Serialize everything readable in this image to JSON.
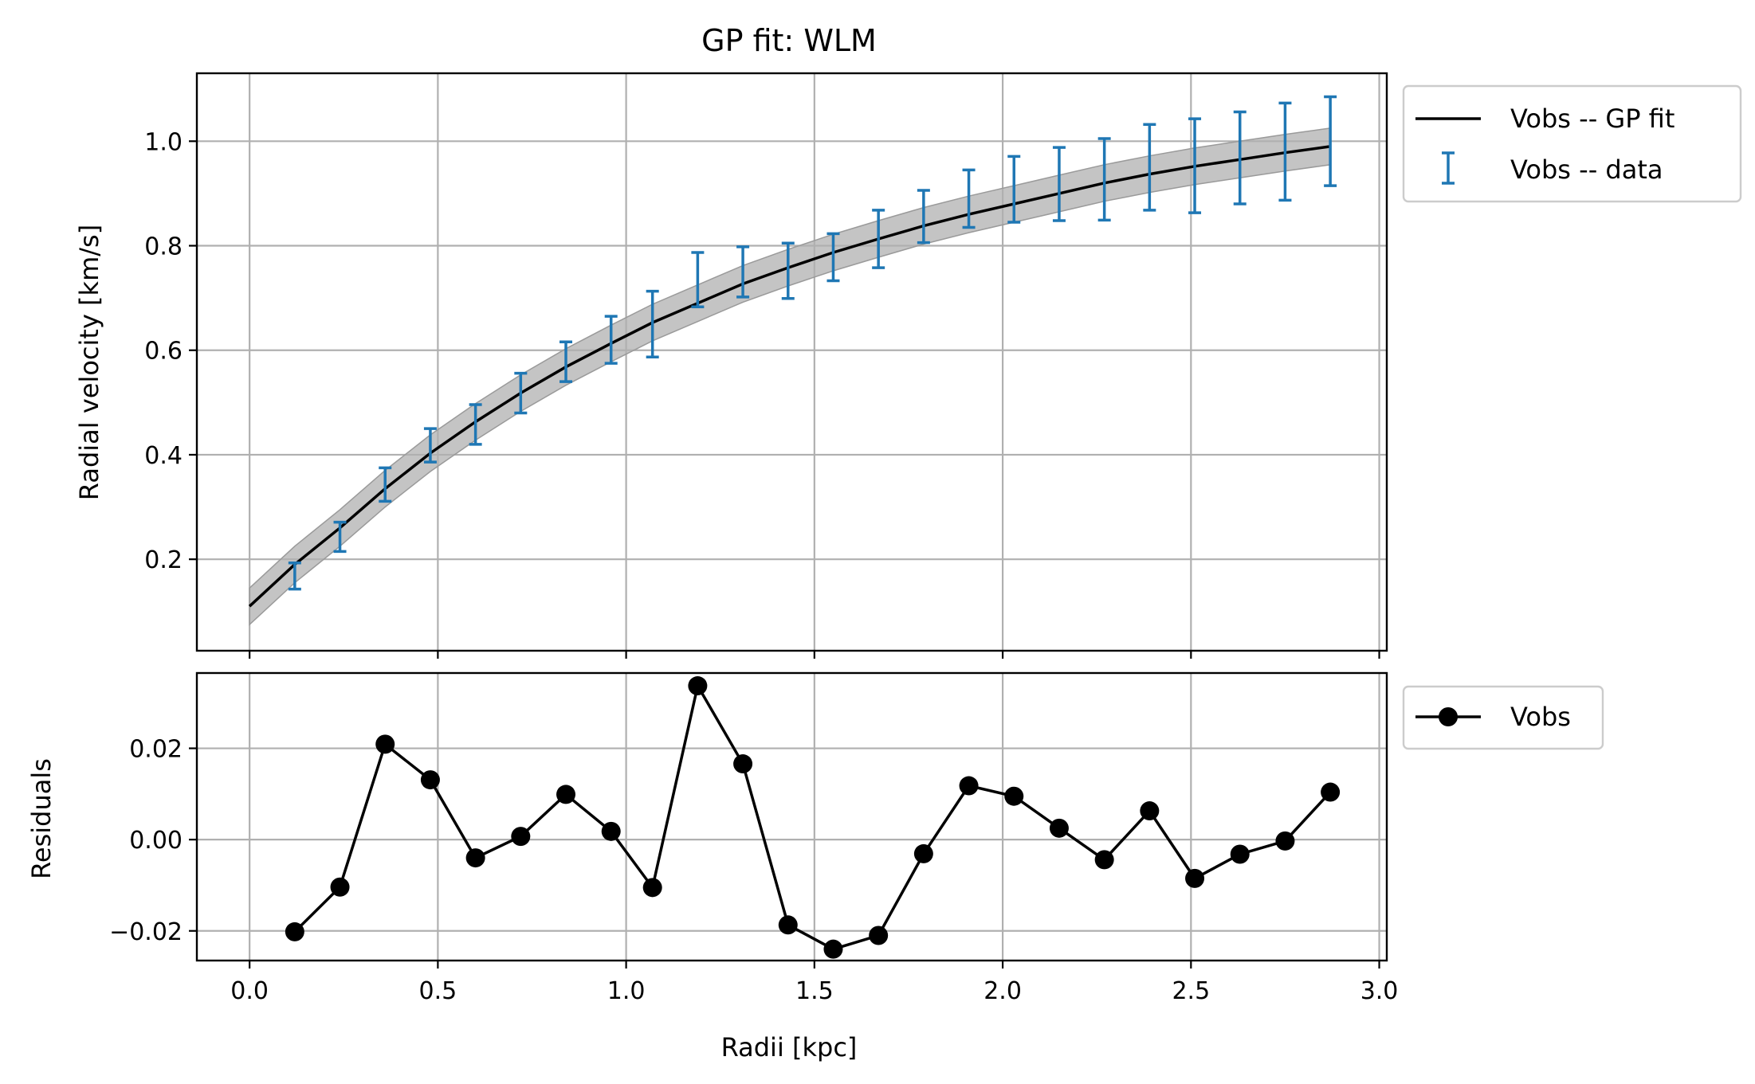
{
  "chart_data": [
    {
      "type": "line",
      "title": "GP fit: WLM",
      "xlabel": "",
      "ylabel": "Radial velocity [km/s]",
      "xlim": [
        -0.14,
        3.02
      ],
      "ylim": [
        0.025,
        1.13
      ],
      "xticks": [
        0.0,
        0.5,
        1.0,
        1.5,
        2.0,
        2.5,
        3.0
      ],
      "yticks": [
        0.2,
        0.4,
        0.6,
        0.8,
        1.0
      ],
      "ytick_labels": [
        "0.2",
        "0.4",
        "0.6",
        "0.8",
        "1.0"
      ],
      "grid": true,
      "legend_position": "outside-top-right",
      "series": [
        {
          "name": "Vobs -- GP fit",
          "kind": "line",
          "color": "#000000",
          "band_color": "#b0b0b0",
          "x": [
            0.0,
            0.12,
            0.24,
            0.36,
            0.48,
            0.6,
            0.72,
            0.84,
            0.96,
            1.07,
            1.19,
            1.31,
            1.43,
            1.55,
            1.67,
            1.79,
            1.91,
            2.03,
            2.15,
            2.27,
            2.39,
            2.51,
            2.63,
            2.75,
            2.87
          ],
          "y": [
            0.11,
            0.19,
            0.26,
            0.335,
            0.403,
            0.463,
            0.518,
            0.568,
            0.613,
            0.653,
            0.69,
            0.727,
            0.758,
            0.787,
            0.813,
            0.838,
            0.86,
            0.88,
            0.9,
            0.92,
            0.937,
            0.952,
            0.965,
            0.978,
            0.99
          ],
          "band_halfwidth": 0.035
        },
        {
          "name": "Vobs -- data",
          "kind": "errorbar",
          "color": "#1f77b4",
          "x": [
            0.12,
            0.24,
            0.36,
            0.48,
            0.6,
            0.72,
            0.84,
            0.96,
            1.07,
            1.19,
            1.31,
            1.43,
            1.55,
            1.67,
            1.79,
            1.91,
            2.03,
            2.15,
            2.27,
            2.39,
            2.51,
            2.63,
            2.75,
            2.87
          ],
          "y": [
            0.168,
            0.243,
            0.343,
            0.418,
            0.458,
            0.518,
            0.578,
            0.62,
            0.65,
            0.735,
            0.75,
            0.752,
            0.778,
            0.813,
            0.856,
            0.89,
            0.908,
            0.918,
            0.927,
            0.95,
            0.953,
            0.968,
            0.98,
            1.0
          ],
          "yerr": [
            0.025,
            0.028,
            0.032,
            0.032,
            0.038,
            0.038,
            0.038,
            0.045,
            0.063,
            0.052,
            0.048,
            0.053,
            0.045,
            0.055,
            0.05,
            0.055,
            0.063,
            0.07,
            0.078,
            0.082,
            0.09,
            0.088,
            0.093,
            0.085
          ]
        }
      ]
    },
    {
      "type": "line",
      "title": "",
      "xlabel": "Radii [kpc]",
      "ylabel": "Residuals",
      "xlim": [
        -0.14,
        3.02
      ],
      "ylim": [
        -0.0265,
        0.0365
      ],
      "xticks": [
        0.0,
        0.5,
        1.0,
        1.5,
        2.0,
        2.5,
        3.0
      ],
      "xtick_labels": [
        "0.0",
        "0.5",
        "1.0",
        "1.5",
        "2.0",
        "2.5",
        "3.0"
      ],
      "yticks": [
        -0.02,
        0.0,
        0.02
      ],
      "ytick_labels": [
        "−0.02",
        "0.00",
        "0.02"
      ],
      "grid": true,
      "legend_position": "outside-top-right",
      "series": [
        {
          "name": "Vobs",
          "kind": "line-marker",
          "color": "#000000",
          "x": [
            0.12,
            0.24,
            0.36,
            0.48,
            0.6,
            0.72,
            0.84,
            0.96,
            1.07,
            1.19,
            1.31,
            1.43,
            1.55,
            1.67,
            1.79,
            1.91,
            2.03,
            2.15,
            2.27,
            2.39,
            2.51,
            2.63,
            2.75,
            2.87
          ],
          "y": [
            -0.0202,
            -0.0104,
            0.0209,
            0.0131,
            -0.004,
            0.0007,
            0.0099,
            0.0018,
            -0.0105,
            0.0337,
            0.0166,
            -0.0187,
            -0.024,
            -0.021,
            -0.0031,
            0.0118,
            0.0095,
            0.0025,
            -0.0044,
            0.0063,
            -0.0085,
            -0.0032,
            -0.0003,
            0.0104
          ]
        }
      ]
    }
  ]
}
